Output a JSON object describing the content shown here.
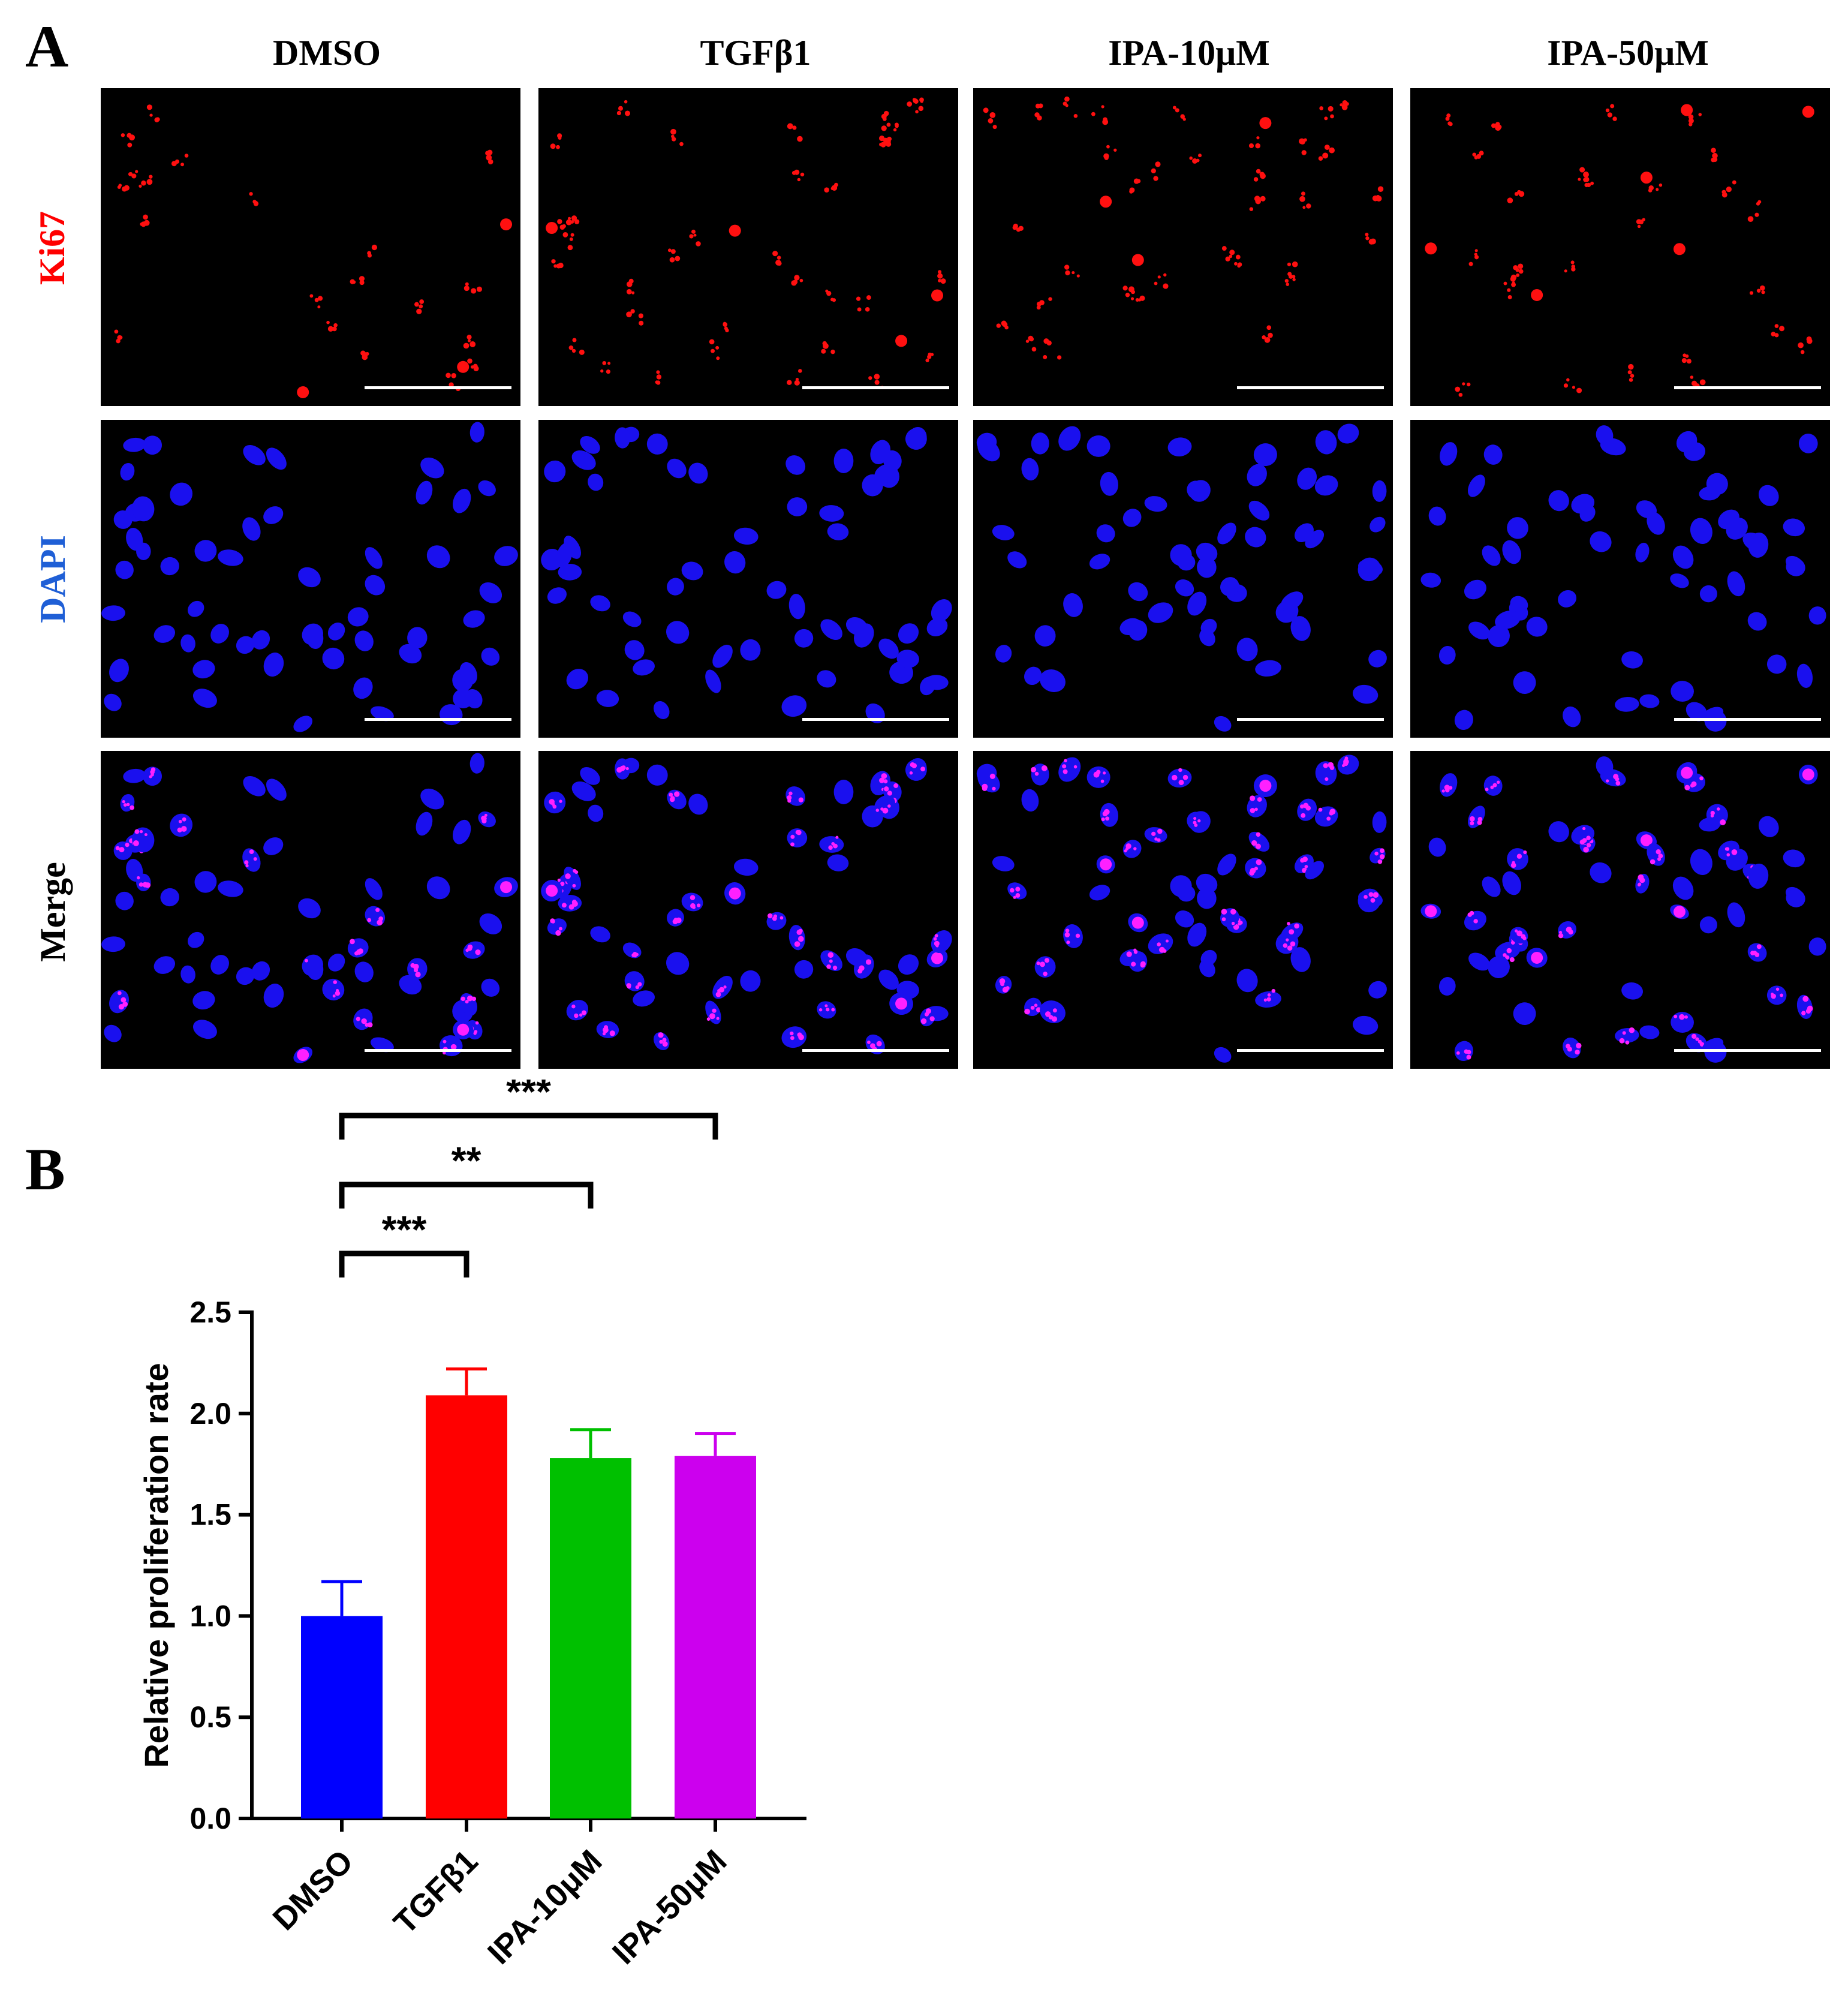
{
  "panel_a": {
    "letter": "A",
    "columns": [
      "DMSO",
      "TGFβ1",
      "IPA-10μM",
      "IPA-50μM"
    ],
    "rows": [
      {
        "label": "Ki67",
        "color": "#ff0000"
      },
      {
        "label": "DAPI",
        "color": "#1f5fd6"
      },
      {
        "label": "Merge",
        "color": "#000000"
      }
    ],
    "image_style": {
      "background": "#000000",
      "ki67_color": "#ff1010",
      "dapi_color": "#1a10ee",
      "merge_spot_color": "#ff20ff",
      "scale_bar_color": "#ffffff"
    }
  },
  "panel_b": {
    "letter": "B",
    "chart_data": {
      "type": "bar",
      "categories": [
        "DMSO",
        "TGFβ1",
        "IPA-10μM",
        "IPA-50μM"
      ],
      "values": [
        1.0,
        2.09,
        1.78,
        1.79
      ],
      "errors": [
        0.17,
        0.13,
        0.14,
        0.11
      ],
      "colors": [
        "#0000ff",
        "#ff0000",
        "#00c000",
        "#cc00ee"
      ],
      "ylabel": "Relative proliferation rate",
      "xlabel": "",
      "title": "",
      "ylim": [
        0,
        2.5
      ],
      "yticks": [
        "0.0",
        "0.5",
        "1.0",
        "1.5",
        "2.0",
        "2.5"
      ],
      "grid": false,
      "significance": [
        {
          "from": "DMSO",
          "to": "TGFβ1",
          "label": "***"
        },
        {
          "from": "DMSO",
          "to": "IPA-10μM",
          "label": "**"
        },
        {
          "from": "DMSO",
          "to": "IPA-50μM",
          "label": "***"
        }
      ]
    }
  }
}
